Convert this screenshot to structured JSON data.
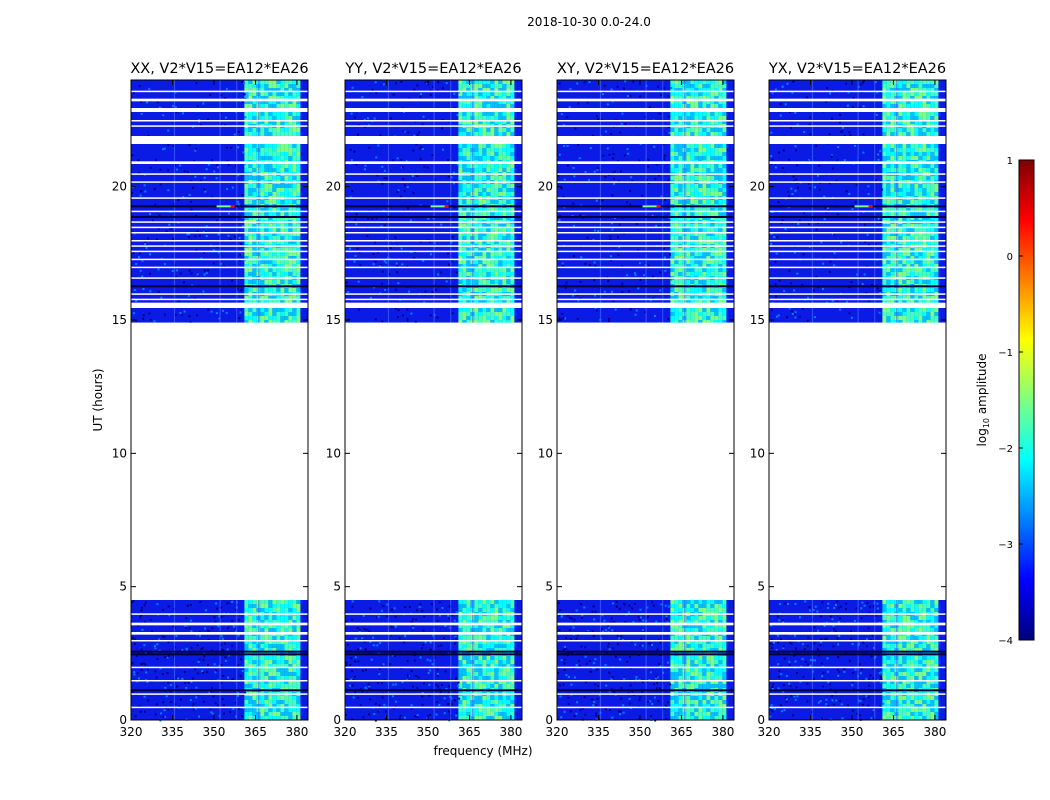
{
  "figure_title": "2018-10-30 0.0-24.0",
  "chart_data": {
    "type": "heatmap",
    "title": "2018-10-30 0.0-24.0",
    "xlabel": "frequency (MHz)",
    "ylabel": "UT (hours)",
    "xlim": [
      320,
      384
    ],
    "ylim": [
      0,
      24
    ],
    "xticks": [
      "320",
      "335",
      "350",
      "365",
      "380"
    ],
    "yticks": [
      "0",
      "5",
      "10",
      "15",
      "20"
    ],
    "panels": [
      {
        "title": "XX, V2*V15=EA12*EA26",
        "polarization": "XX"
      },
      {
        "title": "YY, V2*V15=EA12*EA26",
        "polarization": "YY"
      },
      {
        "title": "XY, V2*V15=EA12*EA26",
        "polarization": "XY"
      },
      {
        "title": "YX, V2*V15=EA12*EA26",
        "polarization": "YX"
      }
    ],
    "data_coverage_ut_hours": [
      [
        0.0,
        4.5
      ],
      [
        14.9,
        24.0
      ]
    ],
    "flagged_gap_ut_hours": [
      4.5,
      14.9
    ],
    "rfi_band_mhz": [
      360,
      380
    ],
    "colorbar": {
      "label": "log10 amplitude",
      "range": [
        -4,
        1
      ],
      "ticks": [
        "1",
        "0",
        "−1",
        "−2",
        "−3",
        "−4"
      ],
      "colormap": "jet"
    }
  },
  "colorbar_label": {
    "prefix": "log",
    "subscript": "10",
    "suffix": " amplitude"
  },
  "colors": {
    "jet_low": "#00007f",
    "jet_mid": "#7fff7f",
    "jet_high": "#7f0000",
    "flag_white": "#ffffff"
  }
}
